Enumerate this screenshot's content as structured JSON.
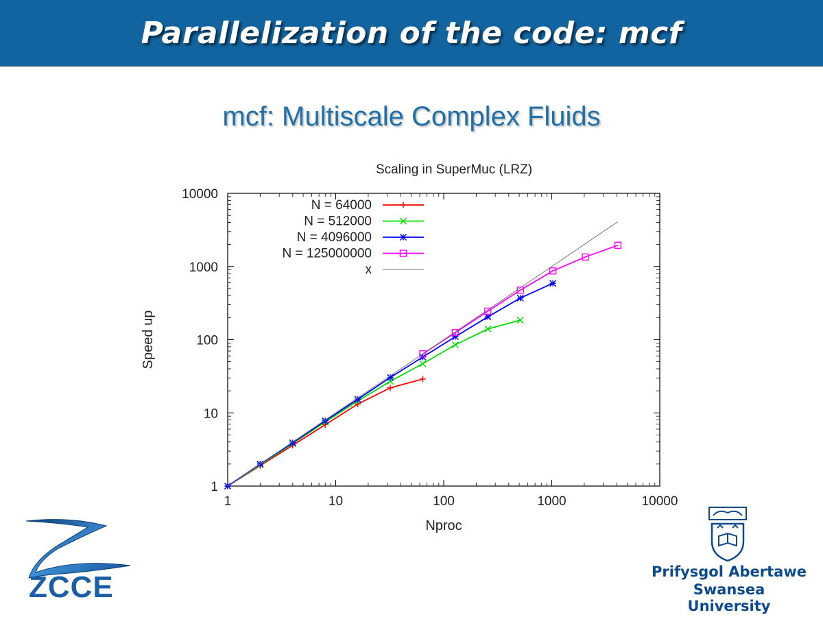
{
  "header": {
    "title": "Parallelization of the code: mcf"
  },
  "subtitle": "mcf: Multiscale Complex Fluids",
  "logos": {
    "left_text": "ZCCE",
    "university_line1": "Prifysgol Abertawe",
    "university_line2": "Swansea University"
  },
  "chart_data": {
    "type": "line",
    "title": "Scaling in SuperMuc (LRZ)",
    "xlabel": "Nproc",
    "ylabel": "Speed up",
    "xscale": "log",
    "yscale": "log",
    "xlim": [
      1,
      10000
    ],
    "ylim": [
      1,
      10000
    ],
    "xticks": [
      "1",
      "10",
      "100",
      "1000",
      "10000"
    ],
    "yticks": [
      "1",
      "10",
      "100",
      "1000",
      "10000"
    ],
    "legend_position": "top-left",
    "series": [
      {
        "name": "N = 64000",
        "color": "#ff0000",
        "marker": "plus",
        "x": [
          1,
          2,
          4,
          8,
          16,
          32,
          64
        ],
        "y": [
          1,
          1.9,
          3.6,
          6.9,
          13.2,
          22,
          29
        ]
      },
      {
        "name": "N = 512000",
        "color": "#00e000",
        "marker": "x",
        "x": [
          1,
          2,
          4,
          8,
          16,
          32,
          64,
          128,
          256,
          512
        ],
        "y": [
          1,
          1.95,
          3.8,
          7.5,
          14.5,
          27,
          47,
          85,
          140,
          185
        ]
      },
      {
        "name": "N = 4096000",
        "color": "#0000ff",
        "marker": "star",
        "x": [
          1,
          2,
          4,
          8,
          16,
          32,
          64,
          128,
          256,
          512,
          1024
        ],
        "y": [
          1,
          2,
          3.9,
          7.8,
          15.3,
          30.5,
          58,
          110,
          205,
          370,
          590
        ]
      },
      {
        "name": "N = 125000000",
        "color": "#ff00ff",
        "marker": "square",
        "x": [
          64,
          128,
          256,
          512,
          1024,
          2048,
          4096
        ],
        "y": [
          64,
          125,
          245,
          475,
          870,
          1350,
          1950
        ]
      },
      {
        "name": "x",
        "color": "#777777",
        "marker": "none",
        "x": [
          1,
          4096
        ],
        "y": [
          1,
          4096
        ]
      }
    ]
  }
}
